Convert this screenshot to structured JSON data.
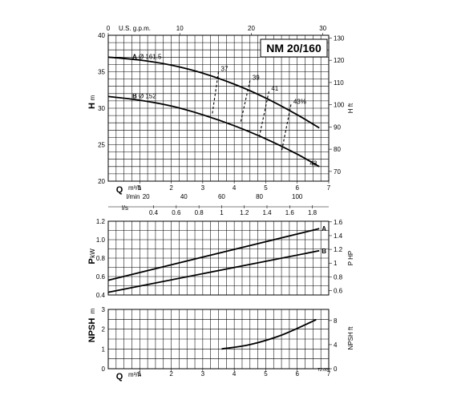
{
  "chart_data": {
    "model": "NM 20/160",
    "reference": "T2.005",
    "flow_axes": {
      "q_symbol": "Q",
      "m3h_unit": "m³/h",
      "m3h_ticks": [
        "1",
        "2",
        "3",
        "4",
        "5",
        "6",
        "7"
      ],
      "lmin_unit": "l/min",
      "lmin_ticks": [
        "20",
        "40",
        "60",
        "80",
        "100"
      ],
      "ls_unit": "l/s",
      "ls_ticks": [
        "0.4",
        "0.6",
        "0.8",
        "1",
        "1.2",
        "1.4",
        "1.6",
        "1.8"
      ],
      "usgpm_unit": "U.S. g.p.m.",
      "usgpm_ticks": [
        "0",
        "10",
        "20",
        "30"
      ]
    },
    "head_panel": {
      "type": "line",
      "ylabel": "H",
      "ylabel_unit": "m",
      "y_ticks": [
        "20",
        "25",
        "30",
        "35",
        "40"
      ],
      "ylim": [
        20,
        40
      ],
      "y2_unit": "H ft",
      "y2_ticks": [
        "70",
        "80",
        "90",
        "100",
        "110",
        "120",
        "130"
      ],
      "xlim": [
        0,
        7
      ],
      "series": [
        {
          "name": "A",
          "diameter_label": "Ø 161.5",
          "x": [
            0,
            1,
            2,
            3,
            4,
            5,
            6,
            6.7
          ],
          "y": [
            37,
            36.6,
            35.9,
            34.8,
            33.3,
            31.4,
            29.1,
            27.3
          ]
        },
        {
          "name": "B",
          "diameter_label": "Ø 152",
          "x": [
            0,
            1,
            2,
            3,
            4,
            5,
            6,
            6.7
          ],
          "y": [
            31.6,
            31.1,
            30.3,
            29.1,
            27.6,
            25.8,
            23.7,
            22
          ]
        }
      ],
      "efficiency_lines": [
        {
          "label": "37",
          "x": [
            3.5,
            3.3
          ],
          "y": [
            35,
            29.1
          ]
        },
        {
          "label": "39",
          "x": [
            4.5,
            4.2
          ],
          "y": [
            33.8,
            28
          ]
        },
        {
          "label": "41",
          "x": [
            5.1,
            4.8
          ],
          "y": [
            32.3,
            26.2
          ]
        },
        {
          "label": "43%",
          "x": [
            5.8,
            5.5
          ],
          "y": [
            30.5,
            24
          ]
        },
        {
          "label": "43",
          "x": [
            6.4
          ],
          "y": [
            22.5
          ]
        }
      ]
    },
    "power_panel": {
      "type": "line",
      "ylabel": "P",
      "ylabel_unit": "kW",
      "y_ticks": [
        "0.4",
        "0.6",
        "0.8",
        "1.0",
        "1.2"
      ],
      "ylim": [
        0.4,
        1.2
      ],
      "y2_unit": "P HP",
      "y2_ticks": [
        "0.6",
        "0.8",
        "1",
        "1.2",
        "1.4",
        "1.6"
      ],
      "xlim": [
        0,
        7
      ],
      "series": [
        {
          "name": "A",
          "x": [
            0,
            6.7
          ],
          "y": [
            0.56,
            1.12
          ]
        },
        {
          "name": "B",
          "x": [
            0,
            6.7
          ],
          "y": [
            0.43,
            0.88
          ]
        }
      ]
    },
    "npsh_panel": {
      "type": "line",
      "ylabel": "NPSH",
      "ylabel_unit": "m",
      "y_ticks": [
        "0",
        "1",
        "2",
        "3"
      ],
      "ylim": [
        0,
        3
      ],
      "y2_unit": "NPSH ft",
      "y2_ticks": [
        "0",
        "4",
        "8"
      ],
      "xlim": [
        0,
        7
      ],
      "series": [
        {
          "name": "",
          "x": [
            3.6,
            4.5,
            5.5,
            6.6
          ],
          "y": [
            1,
            1.22,
            1.7,
            2.48
          ]
        }
      ]
    }
  }
}
